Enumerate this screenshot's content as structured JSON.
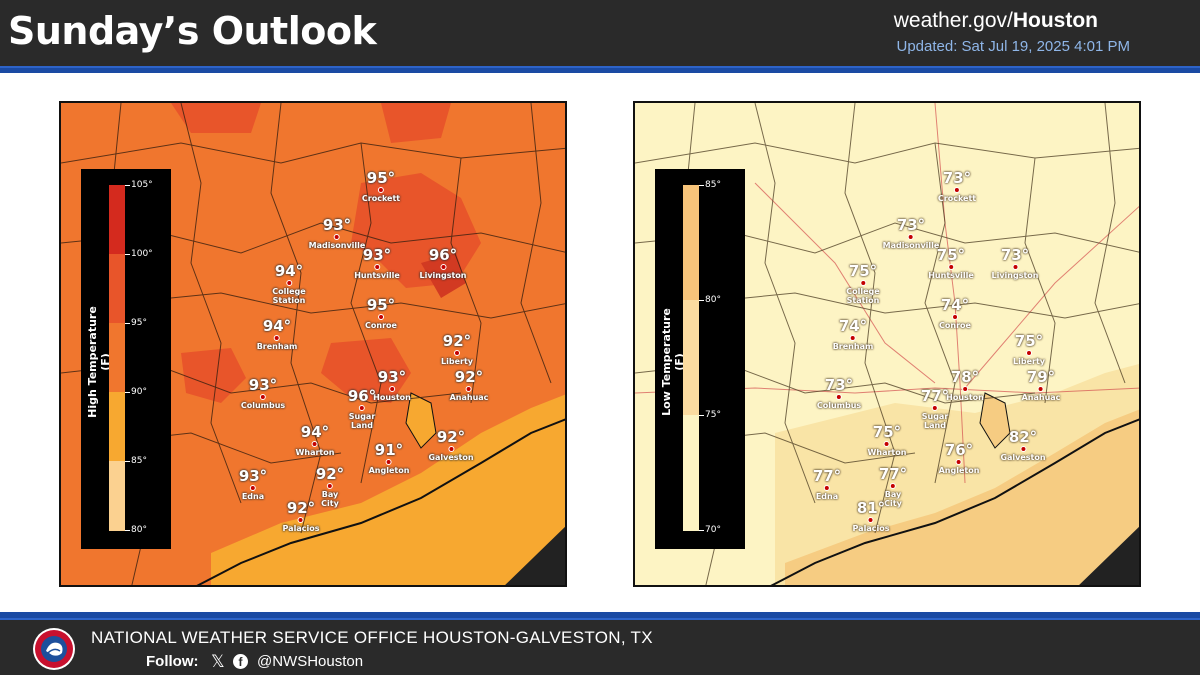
{
  "header": {
    "title": "Sunday’s Outlook",
    "site_prefix": "weather.gov/",
    "site_office": "Houston",
    "updated": "Updated: Sat Jul 19, 2025 4:01 PM"
  },
  "colors": {
    "header_bg": "#2a2a2a",
    "accent_blue": "#1a4aa3",
    "high_base": "#f0762e",
    "high_hot": "#e8552a",
    "high_hottest": "#d23a22",
    "high_coast": "#f7a830",
    "low_base": "#fdf4c4",
    "low_mid": "#f9e4a6",
    "low_coast": "#f6cc82",
    "city_dot": "#c40000"
  },
  "high_map": {
    "legend_title": "High Temperature (F)",
    "legend_ticks": [
      "105°",
      "100°",
      "95°",
      "90°",
      "85°",
      "80°"
    ],
    "cities": [
      {
        "name": "Crockett",
        "temp": "95°"
      },
      {
        "name": "Madisonville",
        "temp": "93°"
      },
      {
        "name": "Huntsville",
        "temp": "93°"
      },
      {
        "name": "Livingston",
        "temp": "96°"
      },
      {
        "name": "College\nStation",
        "temp": "94°"
      },
      {
        "name": "Conroe",
        "temp": "95°"
      },
      {
        "name": "Brenham",
        "temp": "94°"
      },
      {
        "name": "Liberty",
        "temp": "92°"
      },
      {
        "name": "Columbus",
        "temp": "93°"
      },
      {
        "name": "Houston",
        "temp": "93°"
      },
      {
        "name": "Sugar\nLand",
        "temp": "96°"
      },
      {
        "name": "Anahuac",
        "temp": "92°"
      },
      {
        "name": "Wharton",
        "temp": "94°"
      },
      {
        "name": "Angleton",
        "temp": "91°"
      },
      {
        "name": "Galveston",
        "temp": "92°"
      },
      {
        "name": "Edna",
        "temp": "93°"
      },
      {
        "name": "Bay\nCity",
        "temp": "92°"
      },
      {
        "name": "Palacios",
        "temp": "92°"
      }
    ]
  },
  "low_map": {
    "legend_title": "Low Temperature (F)",
    "legend_ticks": [
      "85°",
      "80°",
      "75°",
      "70°"
    ],
    "cities": [
      {
        "name": "Crockett",
        "temp": "73°"
      },
      {
        "name": "Madisonville",
        "temp": "73°"
      },
      {
        "name": "Huntsville",
        "temp": "75°"
      },
      {
        "name": "Livingston",
        "temp": "73°"
      },
      {
        "name": "College\nStation",
        "temp": "75°"
      },
      {
        "name": "Conroe",
        "temp": "74°"
      },
      {
        "name": "Brenham",
        "temp": "74°"
      },
      {
        "name": "Liberty",
        "temp": "75°"
      },
      {
        "name": "Columbus",
        "temp": "73°"
      },
      {
        "name": "Houston",
        "temp": "78°"
      },
      {
        "name": "Sugar\nLand",
        "temp": "77°"
      },
      {
        "name": "Anahuac",
        "temp": "79°"
      },
      {
        "name": "Wharton",
        "temp": "75°"
      },
      {
        "name": "Angleton",
        "temp": "76°"
      },
      {
        "name": "Galveston",
        "temp": "82°"
      },
      {
        "name": "Edna",
        "temp": "77°"
      },
      {
        "name": "Bay\nCity",
        "temp": "77°"
      },
      {
        "name": "Palacios",
        "temp": "81°"
      }
    ]
  },
  "footer": {
    "office": "NATIONAL WEATHER SERVICE OFFICE HOUSTON-GALVESTON, TX",
    "follow_label": "Follow:",
    "x_icon": "x-icon",
    "facebook_icon": "facebook-icon",
    "handle": "@NWSHouston",
    "logo": "nws-logo"
  }
}
